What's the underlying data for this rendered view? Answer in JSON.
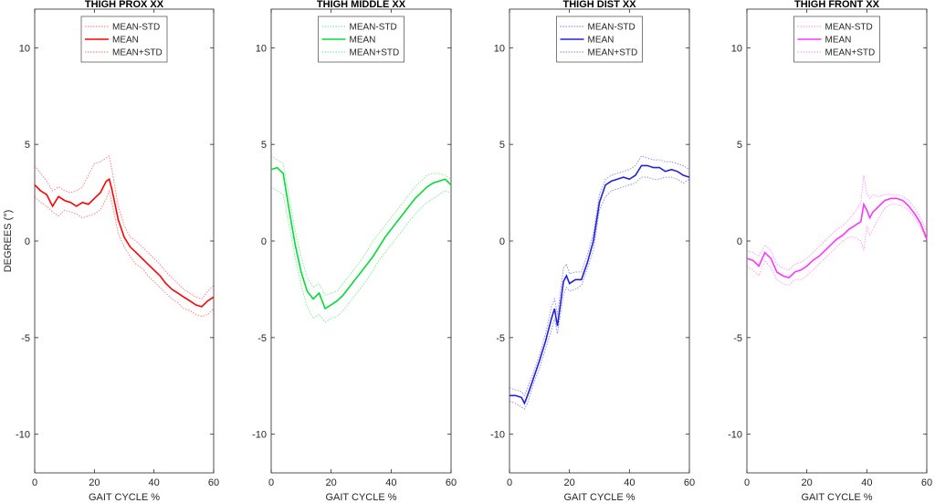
{
  "chart_data": [
    {
      "type": "line",
      "title": "THIGH PROX XX",
      "xlabel": "GAIT CYCLE %",
      "ylabel": "DEGREES (°)",
      "xlim": [
        0,
        60
      ],
      "ylim": [
        -12,
        12
      ],
      "xticks": [
        0,
        20,
        40,
        60
      ],
      "yticks": [
        -10,
        -5,
        0,
        5,
        10
      ],
      "legend_position": "top-center",
      "grid": false,
      "color": "#ff0000",
      "legend": [
        "MEAN-STD",
        "MEAN",
        "MEAN+STD"
      ],
      "x": [
        0,
        2,
        4,
        6,
        8,
        10,
        12,
        14,
        16,
        18,
        20,
        22,
        24,
        25,
        26,
        28,
        30,
        32,
        34,
        36,
        38,
        40,
        42,
        44,
        46,
        48,
        50,
        52,
        54,
        56,
        58,
        60
      ],
      "series": [
        {
          "name": "MEAN-STD",
          "style": "dotted",
          "values": [
            2.3,
            2.0,
            1.8,
            1.5,
            1.3,
            1.6,
            1.5,
            1.4,
            1.2,
            1.3,
            1.4,
            1.6,
            2.2,
            2.6,
            1.9,
            0.4,
            -0.3,
            -0.8,
            -1.2,
            -1.4,
            -1.8,
            -2.1,
            -2.4,
            -2.7,
            -3.0,
            -3.2,
            -3.5,
            -3.6,
            -3.8,
            -3.9,
            -3.8,
            -3.5
          ]
        },
        {
          "name": "MEAN",
          "style": "solid",
          "values": [
            2.9,
            2.6,
            2.4,
            1.8,
            2.3,
            2.1,
            2.0,
            1.8,
            2.0,
            1.9,
            2.2,
            2.5,
            3.1,
            3.2,
            2.6,
            1.1,
            0.2,
            -0.3,
            -0.6,
            -0.9,
            -1.2,
            -1.5,
            -1.8,
            -2.2,
            -2.5,
            -2.7,
            -2.9,
            -3.1,
            -3.3,
            -3.4,
            -3.1,
            -2.9
          ]
        },
        {
          "name": "MEAN+STD",
          "style": "dotted",
          "values": [
            3.9,
            3.5,
            3.1,
            2.6,
            2.8,
            2.6,
            2.5,
            2.6,
            2.8,
            3.4,
            4.0,
            4.1,
            4.3,
            4.4,
            3.6,
            1.8,
            0.8,
            0.2,
            0.0,
            -0.3,
            -0.6,
            -0.9,
            -1.2,
            -1.6,
            -1.9,
            -2.2,
            -2.5,
            -2.7,
            -2.9,
            -3.0,
            -2.6,
            -2.3
          ]
        }
      ]
    },
    {
      "type": "line",
      "title": "THIGH MIDDLE XX",
      "xlabel": "GAIT CYCLE %",
      "ylabel": "",
      "xlim": [
        0,
        60
      ],
      "ylim": [
        -12,
        12
      ],
      "xticks": [
        0,
        20,
        40,
        60
      ],
      "yticks": [
        -10,
        -5,
        0,
        5,
        10
      ],
      "legend_position": "top-center",
      "grid": false,
      "color": "#00dd33",
      "legend": [
        "MEAN-STD",
        "MEAN",
        "MEAN+STD"
      ],
      "x": [
        0,
        2,
        4,
        6,
        8,
        10,
        12,
        14,
        16,
        18,
        20,
        22,
        24,
        26,
        28,
        30,
        32,
        34,
        36,
        38,
        40,
        42,
        44,
        46,
        48,
        50,
        52,
        54,
        56,
        58,
        60
      ],
      "series": [
        {
          "name": "MEAN-STD",
          "style": "dotted",
          "values": [
            2.8,
            2.6,
            2.4,
            0.8,
            -0.9,
            -2.3,
            -3.4,
            -4.0,
            -3.8,
            -4.2,
            -4.0,
            -3.9,
            -3.6,
            -3.2,
            -2.8,
            -2.4,
            -2.0,
            -1.5,
            -1.0,
            -0.6,
            -0.2,
            0.2,
            0.6,
            1.0,
            1.4,
            1.7,
            2.0,
            2.2,
            2.4,
            2.6,
            2.5
          ]
        },
        {
          "name": "MEAN",
          "style": "solid",
          "values": [
            3.7,
            3.8,
            3.5,
            1.6,
            -0.2,
            -1.6,
            -2.6,
            -3.0,
            -2.7,
            -3.5,
            -3.3,
            -3.1,
            -2.8,
            -2.4,
            -2.0,
            -1.6,
            -1.2,
            -0.8,
            -0.3,
            0.2,
            0.6,
            1.0,
            1.4,
            1.8,
            2.2,
            2.5,
            2.8,
            3.0,
            3.1,
            3.2,
            2.9
          ]
        },
        {
          "name": "MEAN+STD",
          "style": "dotted",
          "values": [
            4.4,
            4.2,
            4.0,
            2.3,
            0.5,
            -0.8,
            -1.9,
            -2.4,
            -2.2,
            -2.8,
            -2.7,
            -2.6,
            -2.2,
            -1.8,
            -1.4,
            -1.0,
            -0.5,
            0.0,
            0.4,
            0.8,
            1.2,
            1.6,
            2.0,
            2.4,
            2.8,
            3.1,
            3.4,
            3.5,
            3.5,
            3.4,
            3.2
          ]
        }
      ]
    },
    {
      "type": "line",
      "title": "THIGH DIST XX",
      "xlabel": "GAIT CYCLE %",
      "ylabel": "",
      "xlim": [
        0,
        60
      ],
      "ylim": [
        -12,
        12
      ],
      "xticks": [
        0,
        20,
        40,
        60
      ],
      "yticks": [
        -10,
        -5,
        0,
        5,
        10
      ],
      "legend_position": "top-center",
      "grid": false,
      "color": "#2222dd",
      "legend": [
        "MEAN-STD",
        "MEAN",
        "MEAN+STD"
      ],
      "x": [
        0,
        2,
        4,
        5,
        6,
        8,
        10,
        12,
        14,
        15,
        16,
        18,
        19,
        20,
        22,
        24,
        26,
        28,
        30,
        32,
        34,
        36,
        38,
        40,
        42,
        44,
        46,
        48,
        50,
        52,
        54,
        56,
        58,
        60
      ],
      "series": [
        {
          "name": "MEAN-STD",
          "style": "dotted",
          "values": [
            -8.3,
            -8.4,
            -8.6,
            -8.7,
            -8.4,
            -7.4,
            -6.6,
            -5.6,
            -4.6,
            -4.0,
            -4.8,
            -2.8,
            -2.4,
            -2.6,
            -2.5,
            -2.3,
            -1.4,
            -0.5,
            1.6,
            2.3,
            2.6,
            2.7,
            2.8,
            2.9,
            3.0,
            3.3,
            3.3,
            3.2,
            3.2,
            3.3,
            3.3,
            3.2,
            3.0,
            3.2
          ]
        },
        {
          "name": "MEAN",
          "style": "solid",
          "values": [
            -8.0,
            -8.0,
            -8.1,
            -8.4,
            -8.0,
            -7.1,
            -6.2,
            -5.2,
            -4.0,
            -3.5,
            -4.4,
            -2.1,
            -1.8,
            -2.2,
            -2.0,
            -2.0,
            -1.1,
            0.0,
            2.0,
            2.9,
            3.1,
            3.2,
            3.3,
            3.2,
            3.4,
            3.9,
            3.9,
            3.8,
            3.8,
            3.6,
            3.7,
            3.6,
            3.4,
            3.3
          ]
        },
        {
          "name": "MEAN+STD",
          "style": "dotted",
          "values": [
            -7.6,
            -7.7,
            -7.8,
            -8.0,
            -7.6,
            -6.8,
            -5.9,
            -4.8,
            -3.4,
            -3.0,
            -3.8,
            -1.4,
            -1.2,
            -1.7,
            -1.6,
            -1.6,
            -0.7,
            0.4,
            2.4,
            3.2,
            3.4,
            3.5,
            3.6,
            3.7,
            3.9,
            4.4,
            4.3,
            4.2,
            4.2,
            4.1,
            4.1,
            4.0,
            3.9,
            3.7
          ]
        }
      ]
    },
    {
      "type": "line",
      "title": "THIGH FRONT XX",
      "xlabel": "GAIT CYCLE %",
      "ylabel": "",
      "xlim": [
        0,
        60
      ],
      "ylim": [
        -12,
        12
      ],
      "xticks": [
        0,
        20,
        40,
        60
      ],
      "yticks": [
        -10,
        -5,
        0,
        5,
        10
      ],
      "legend_position": "top-center",
      "grid": false,
      "color": "#ff33ff",
      "legend": [
        "MEAN-STD",
        "MEAN",
        "MEAN+STD"
      ],
      "x": [
        0,
        2,
        4,
        6,
        8,
        10,
        12,
        14,
        16,
        18,
        20,
        22,
        24,
        26,
        28,
        30,
        32,
        34,
        36,
        38,
        39,
        40,
        41,
        42,
        44,
        46,
        48,
        50,
        52,
        54,
        56,
        58,
        60
      ],
      "series": [
        {
          "name": "MEAN-STD",
          "style": "dotted",
          "values": [
            -1.3,
            -1.5,
            -1.8,
            -1.0,
            -1.4,
            -2.0,
            -2.2,
            -2.3,
            -2.0,
            -2.0,
            -1.8,
            -1.5,
            -1.2,
            -0.9,
            -0.6,
            -0.3,
            0.0,
            0.2,
            0.2,
            0.0,
            -0.5,
            0.8,
            0.3,
            0.6,
            1.2,
            1.7,
            1.9,
            1.9,
            1.8,
            1.6,
            1.2,
            0.7,
            0.0
          ]
        },
        {
          "name": "MEAN",
          "style": "solid",
          "values": [
            -0.9,
            -1.0,
            -1.3,
            -0.6,
            -0.9,
            -1.6,
            -1.8,
            -1.9,
            -1.6,
            -1.5,
            -1.3,
            -1.0,
            -0.8,
            -0.5,
            -0.2,
            0.1,
            0.3,
            0.6,
            0.8,
            1.0,
            1.9,
            1.6,
            1.2,
            1.5,
            1.8,
            2.1,
            2.2,
            2.2,
            2.1,
            1.8,
            1.4,
            0.9,
            0.1
          ]
        },
        {
          "name": "MEAN+STD",
          "style": "dotted",
          "values": [
            -0.5,
            -0.6,
            -0.8,
            -0.2,
            -0.5,
            -1.2,
            -1.4,
            -1.5,
            -1.2,
            -1.1,
            -0.9,
            -0.6,
            -0.3,
            0.0,
            0.3,
            0.6,
            0.8,
            1.1,
            1.5,
            2.0,
            3.4,
            2.5,
            2.2,
            2.4,
            2.3,
            2.4,
            2.4,
            2.4,
            2.3,
            2.1,
            1.7,
            1.2,
            0.5
          ]
        }
      ]
    }
  ]
}
